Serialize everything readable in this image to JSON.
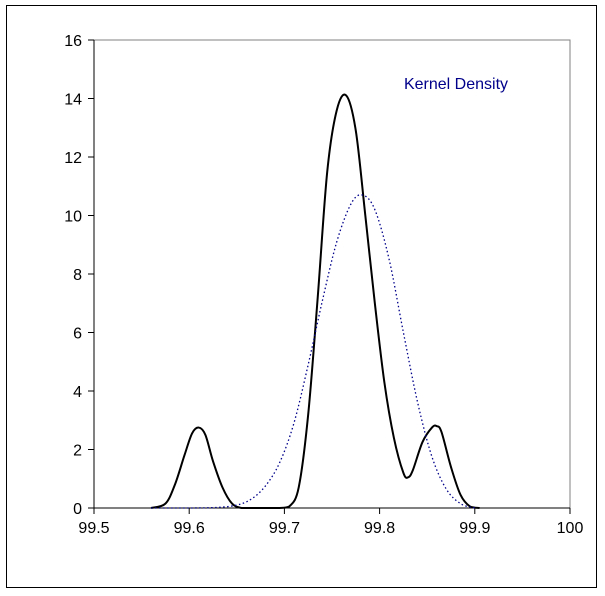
{
  "chart_data": {
    "type": "line",
    "title": "",
    "xlabel": "",
    "ylabel": "",
    "xlim": [
      99.5,
      100
    ],
    "ylim": [
      0,
      16
    ],
    "x_ticks": [
      99.5,
      99.6,
      99.7,
      99.8,
      99.9,
      100
    ],
    "x_tick_labels": [
      "99.5",
      "99.6",
      "99.7",
      "99.8",
      "99.9",
      "100"
    ],
    "y_ticks": [
      0,
      2,
      4,
      6,
      8,
      10,
      12,
      14,
      16
    ],
    "y_tick_labels": [
      "0",
      "2",
      "4",
      "6",
      "8",
      "10",
      "12",
      "14",
      "16"
    ],
    "grid": false,
    "legend_position": "top-right",
    "series": [
      {
        "style": "solid",
        "color": "#000000",
        "x": [
          99.56,
          99.575,
          99.585,
          99.595,
          99.603,
          99.61,
          99.617,
          99.625,
          99.635,
          99.645,
          99.655,
          99.665,
          99.675,
          99.685,
          99.695,
          99.705,
          99.715,
          99.725,
          99.735,
          99.745,
          99.755,
          99.765,
          99.775,
          99.785,
          99.795,
          99.805,
          99.815,
          99.825,
          99.83,
          99.835,
          99.845,
          99.855,
          99.86,
          99.865,
          99.875,
          99.885,
          99.895,
          99.905
        ],
        "y": [
          0,
          0.15,
          0.8,
          1.8,
          2.55,
          2.75,
          2.5,
          1.6,
          0.7,
          0.15,
          0,
          0,
          0,
          0,
          0,
          0.05,
          0.7,
          3.2,
          7.2,
          11.5,
          13.6,
          14.1,
          12.9,
          10.0,
          7.0,
          4.3,
          2.4,
          1.2,
          1.05,
          1.3,
          2.25,
          2.75,
          2.8,
          2.6,
          1.4,
          0.45,
          0.05,
          0
        ]
      },
      {
        "name": "Kernel Density",
        "style": "dotted",
        "color": "#00008B",
        "x": [
          99.56,
          99.6,
          99.63,
          99.65,
          99.665,
          99.68,
          99.695,
          99.71,
          99.725,
          99.74,
          99.755,
          99.77,
          99.782,
          99.795,
          99.81,
          99.825,
          99.84,
          99.855,
          99.87,
          99.885,
          99.9
        ],
        "y": [
          0,
          0,
          0.02,
          0.1,
          0.3,
          0.75,
          1.55,
          2.9,
          4.9,
          7.1,
          9.1,
          10.4,
          10.7,
          10.2,
          8.5,
          6.0,
          3.6,
          1.75,
          0.65,
          0.15,
          0
        ]
      }
    ]
  }
}
